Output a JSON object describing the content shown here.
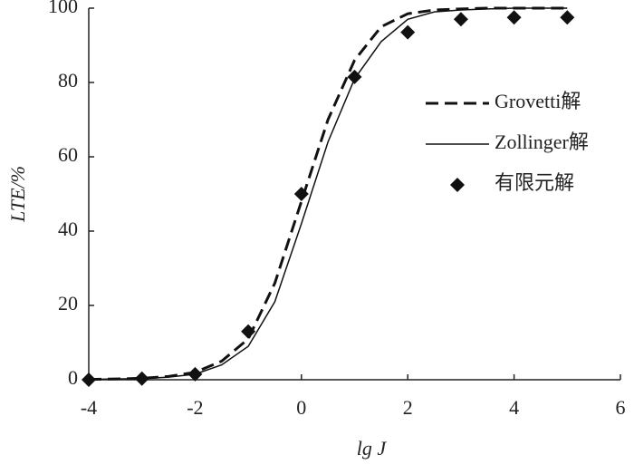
{
  "chart_data": {
    "type": "line",
    "xlabel": "lg J",
    "ylabel": "LTE/%",
    "xlim": [
      -4,
      6
    ],
    "xticks": [
      -4,
      -2,
      0,
      2,
      4,
      6
    ],
    "ylim": [
      0,
      100
    ],
    "yticks": [
      0,
      20,
      40,
      60,
      80,
      100
    ],
    "legend": "right",
    "series": [
      {
        "name": "Grovetti解",
        "color": "#111111",
        "style": "dashed",
        "x": [
          -4,
          -3.5,
          -3,
          -2.5,
          -2,
          -1.5,
          -1,
          -0.5,
          0,
          0.5,
          1,
          1.5,
          2,
          2.5,
          3,
          3.5,
          4,
          4.5,
          5
        ],
        "values": [
          0.1,
          0.2,
          0.4,
          0.9,
          2,
          5,
          11,
          26,
          48,
          70,
          86,
          95,
          98.5,
          99.5,
          99.8,
          100,
          100,
          100,
          100
        ]
      },
      {
        "name": "Zollinger解",
        "color": "#111111",
        "style": "solid",
        "x": [
          -4,
          -3.5,
          -3,
          -2.5,
          -2,
          -1.5,
          -1,
          -0.5,
          0,
          0.5,
          1,
          1.5,
          2,
          2.5,
          3,
          3.5,
          4,
          4.5,
          5
        ],
        "values": [
          0.1,
          0.2,
          0.3,
          0.7,
          1.5,
          4,
          9,
          21,
          42,
          64,
          81,
          91,
          97,
          99,
          99.5,
          99.8,
          100,
          100,
          100
        ]
      },
      {
        "name": "有限元解",
        "color": "#111111",
        "style": "markers",
        "x": [
          -4,
          -3,
          -2,
          -1,
          0,
          1,
          2,
          3,
          4,
          5
        ],
        "values": [
          0,
          0.3,
          1.5,
          13,
          50,
          81.5,
          93.5,
          97,
          97.5,
          97.5
        ]
      }
    ]
  }
}
